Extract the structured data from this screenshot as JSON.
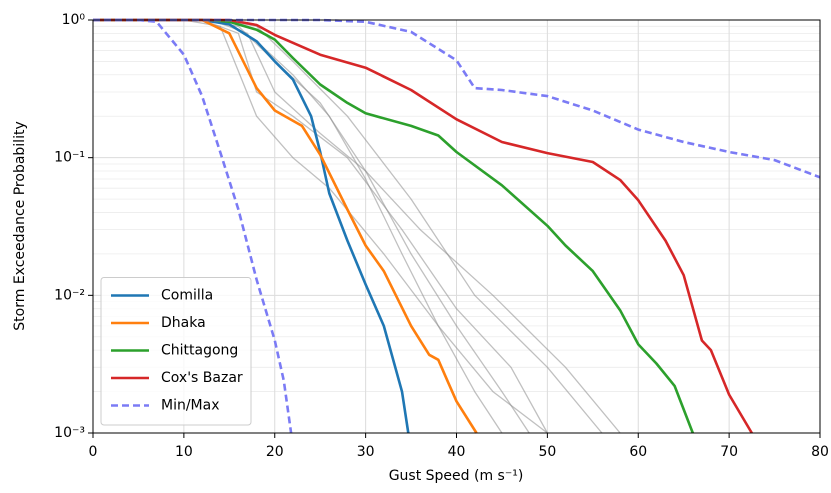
{
  "chart_data": {
    "type": "line",
    "xlabel": "Gust Speed (m s⁻¹)",
    "ylabel": "Storm Exceedance Probability",
    "xlim": [
      0,
      80
    ],
    "ylim": [
      0.001,
      1
    ],
    "log_y": true,
    "grid": true,
    "legend_loc": "lower left",
    "xticks": [
      0,
      10,
      20,
      30,
      40,
      50,
      60,
      70,
      80
    ],
    "yticks": [
      {
        "value": 0.001,
        "label": "10⁻³"
      },
      {
        "value": 0.01,
        "label": "10⁻²"
      },
      {
        "value": 0.1,
        "label": "10⁻¹"
      },
      {
        "value": 1,
        "label": "10⁰"
      }
    ],
    "y_minor_ticks": [
      0.002,
      0.003,
      0.004,
      0.005,
      0.006,
      0.007,
      0.008,
      0.009,
      0.02,
      0.03,
      0.04,
      0.05,
      0.06,
      0.07,
      0.08,
      0.09,
      0.2,
      0.3,
      0.4,
      0.5,
      0.6,
      0.7,
      0.8,
      0.9
    ],
    "series": [
      {
        "color": "#8c8c8c",
        "x": [
          0,
          12,
          16,
          18,
          22,
          28,
          34,
          40,
          46,
          50
        ],
        "values": [
          1,
          1,
          0.8,
          0.3,
          0.2,
          0.1,
          0.03,
          0.008,
          0.003,
          0.001
        ]
      },
      {
        "color": "#8c8c8c",
        "x": [
          0,
          12,
          16,
          20,
          25,
          30,
          35,
          40,
          45,
          48
        ],
        "values": [
          1,
          1,
          0.9,
          0.5,
          0.25,
          0.08,
          0.02,
          0.006,
          0.002,
          0.001
        ]
      },
      {
        "color": "#8c8c8c",
        "x": [
          0,
          14,
          18,
          22,
          28,
          35,
          42,
          50,
          56
        ],
        "values": [
          1,
          1,
          0.9,
          0.5,
          0.2,
          0.05,
          0.01,
          0.003,
          0.001
        ]
      },
      {
        "color": "#8c8c8c",
        "x": [
          0,
          10,
          14,
          18,
          22,
          26,
          32,
          38,
          44,
          50
        ],
        "values": [
          1,
          1,
          0.9,
          0.2,
          0.1,
          0.06,
          0.02,
          0.006,
          0.002,
          0.001
        ]
      },
      {
        "color": "#8c8c8c",
        "x": [
          0,
          14,
          18,
          22,
          26,
          30,
          34,
          38,
          42,
          45
        ],
        "values": [
          1,
          1,
          0.7,
          0.4,
          0.2,
          0.07,
          0.02,
          0.006,
          0.002,
          0.001
        ]
      },
      {
        "color": "#8c8c8c",
        "x": [
          0,
          13,
          17,
          20,
          25,
          30,
          36,
          44,
          52,
          58
        ],
        "values": [
          1,
          1,
          0.8,
          0.3,
          0.15,
          0.08,
          0.03,
          0.01,
          0.003,
          0.001
        ]
      },
      {
        "name": "Comilla",
        "color": "#1f77b4",
        "x": [
          0,
          12,
          15,
          18,
          20,
          22,
          24,
          25,
          26,
          28,
          30,
          32,
          34,
          34.7
        ],
        "values": [
          1,
          1,
          0.93,
          0.7,
          0.5,
          0.37,
          0.2,
          0.11,
          0.055,
          0.025,
          0.012,
          0.006,
          0.002,
          0.001
        ]
      },
      {
        "name": "Dhaka",
        "color": "#ff7f0e",
        "x": [
          0,
          12,
          15,
          18,
          20,
          23,
          25,
          28,
          30,
          32,
          35,
          37,
          38,
          39,
          40,
          42.2
        ],
        "values": [
          1,
          1,
          0.8,
          0.32,
          0.22,
          0.17,
          0.105,
          0.042,
          0.023,
          0.015,
          0.006,
          0.0037,
          0.0034,
          0.0024,
          0.0017,
          0.001
        ]
      },
      {
        "name": "Chittagong",
        "color": "#2ca02c",
        "x": [
          0,
          13,
          15,
          18,
          20,
          22,
          25,
          28,
          30,
          35,
          38,
          40,
          45,
          50,
          52,
          55,
          58,
          60,
          62,
          64,
          66
        ],
        "values": [
          1,
          1,
          0.97,
          0.85,
          0.72,
          0.53,
          0.34,
          0.25,
          0.21,
          0.17,
          0.145,
          0.11,
          0.063,
          0.032,
          0.023,
          0.015,
          0.0078,
          0.0044,
          0.0032,
          0.0022,
          0.001
        ]
      },
      {
        "name": "Cox's Bazar",
        "color": "#d62728",
        "x": [
          0,
          15,
          18,
          20,
          25,
          30,
          35,
          40,
          45,
          50,
          55,
          58,
          60,
          63,
          65,
          67,
          68,
          70,
          72.5
        ],
        "values": [
          1,
          1,
          0.92,
          0.78,
          0.56,
          0.45,
          0.31,
          0.19,
          0.13,
          0.108,
          0.093,
          0.069,
          0.049,
          0.025,
          0.014,
          0.0047,
          0.004,
          0.0019,
          0.001
        ]
      },
      {
        "name": "Min/Max",
        "color": "#7b7bf5",
        "style": "dashed",
        "x": [
          0,
          25,
          30,
          35,
          40,
          42,
          45,
          50,
          55,
          60,
          65,
          70,
          75,
          80
        ],
        "values": [
          1,
          1,
          0.97,
          0.82,
          0.51,
          0.32,
          0.31,
          0.28,
          0.22,
          0.16,
          0.13,
          0.11,
          0.096,
          0.072
        ]
      },
      {
        "color": "#7b7bf5",
        "style": "dashed",
        "x": [
          0,
          5,
          7,
          10,
          12,
          14,
          16,
          18,
          20,
          21,
          21.8
        ],
        "values": [
          1,
          1,
          0.97,
          0.56,
          0.28,
          0.11,
          0.042,
          0.013,
          0.0047,
          0.0024,
          0.001
        ]
      }
    ]
  }
}
